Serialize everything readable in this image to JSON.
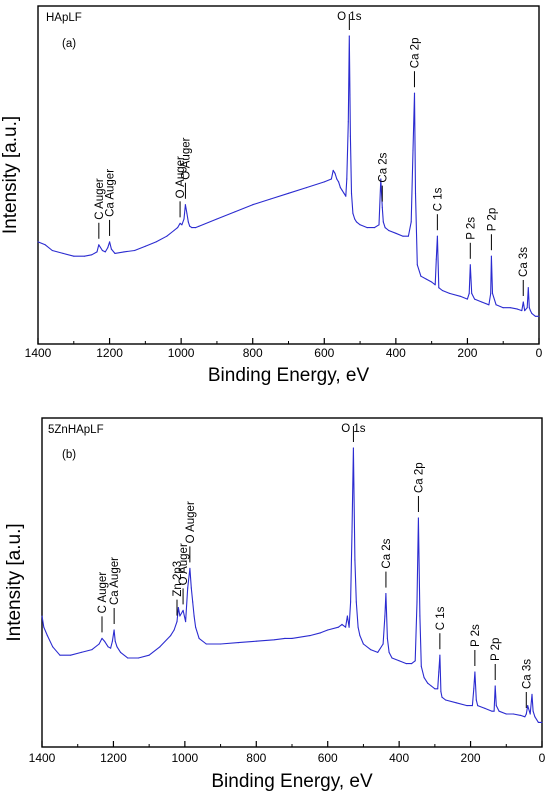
{
  "chart_data": [
    {
      "type": "line",
      "sample": "HApLF",
      "panel": "(a)",
      "xlabel": "Binding Energy, eV",
      "ylabel": "Intensity [a.u.]",
      "xlim": [
        1400,
        0
      ],
      "x_reversed": true,
      "x_ticks": [
        1400,
        1200,
        1000,
        800,
        600,
        400,
        200,
        0
      ],
      "grid": false,
      "line_color": "#2b2bd0",
      "series": [
        {
          "x": [
            1400,
            1380,
            1360,
            1330,
            1300,
            1270,
            1250,
            1235,
            1230,
            1220,
            1212,
            1205,
            1200,
            1195,
            1185,
            1160,
            1130,
            1100,
            1070,
            1040,
            1020,
            1010,
            1003,
            998,
            992,
            988,
            984,
            980,
            976,
            970,
            960,
            950,
            900,
            850,
            800,
            750,
            700,
            650,
            600,
            580,
            575,
            570,
            565,
            560,
            555,
            550,
            545,
            540,
            537,
            533,
            530,
            527,
            524,
            520,
            515,
            510,
            500,
            480,
            460,
            447,
            442,
            438,
            435,
            430,
            420,
            400,
            380,
            365,
            357,
            352,
            348,
            345,
            340,
            330,
            315,
            300,
            290,
            287,
            284,
            280,
            270,
            250,
            220,
            200,
            195,
            192,
            188,
            180,
            160,
            140,
            135,
            133,
            130,
            120,
            100,
            80,
            60,
            48,
            44,
            40,
            33,
            30,
            27,
            24,
            20,
            10,
            5,
            0
          ],
          "y": [
            0.28,
            0.27,
            0.25,
            0.24,
            0.23,
            0.23,
            0.235,
            0.245,
            0.27,
            0.25,
            0.245,
            0.26,
            0.28,
            0.255,
            0.24,
            0.245,
            0.25,
            0.265,
            0.28,
            0.3,
            0.32,
            0.33,
            0.345,
            0.34,
            0.36,
            0.41,
            0.38,
            0.35,
            0.335,
            0.33,
            0.33,
            0.335,
            0.36,
            0.385,
            0.41,
            0.43,
            0.45,
            0.47,
            0.49,
            0.5,
            0.53,
            0.52,
            0.5,
            0.49,
            0.47,
            0.46,
            0.45,
            0.44,
            0.5,
            0.7,
            1.0,
            0.65,
            0.45,
            0.38,
            0.36,
            0.35,
            0.34,
            0.33,
            0.33,
            0.34,
            0.5,
            0.4,
            0.35,
            0.33,
            0.32,
            0.31,
            0.3,
            0.3,
            0.35,
            0.6,
            0.8,
            0.45,
            0.2,
            0.16,
            0.15,
            0.14,
            0.13,
            0.22,
            0.3,
            0.12,
            0.11,
            0.1,
            0.09,
            0.08,
            0.1,
            0.2,
            0.1,
            0.08,
            0.07,
            0.06,
            0.1,
            0.23,
            0.1,
            0.06,
            0.05,
            0.05,
            0.045,
            0.04,
            0.07,
            0.04,
            0.05,
            0.12,
            0.05,
            0.04,
            0.03,
            0.02,
            0.02,
            0.02
          ]
        }
      ],
      "annotations": [
        {
          "label": "C Auger",
          "x": 1230
        },
        {
          "label": "Ca Auger",
          "x": 1200
        },
        {
          "label": "O Auger",
          "x": 1003
        },
        {
          "label": "O Auger",
          "x": 988
        },
        {
          "label": "O 1s",
          "x": 530
        },
        {
          "label": "Ca 2s",
          "x": 438
        },
        {
          "label": "Ca 2p",
          "x": 348
        },
        {
          "label": "C  1s",
          "x": 284
        },
        {
          "label": "P 2s",
          "x": 192
        },
        {
          "label": "P 2p",
          "x": 133
        },
        {
          "label": "Ca 3s",
          "x": 44
        }
      ]
    },
    {
      "type": "line",
      "sample": "5ZnHApLF",
      "panel": "(b)",
      "xlabel": "Binding Energy, eV",
      "ylabel": "Intensity [a.u.]",
      "xlim": [
        1400,
        0
      ],
      "x_reversed": true,
      "x_ticks": [
        1400,
        1200,
        1000,
        800,
        600,
        400,
        200,
        0
      ],
      "grid": false,
      "line_color": "#2b2bd0",
      "series": [
        {
          "x": [
            1400,
            1395,
            1385,
            1370,
            1350,
            1320,
            1290,
            1260,
            1240,
            1232,
            1225,
            1215,
            1208,
            1203,
            1198,
            1195,
            1190,
            1180,
            1160,
            1130,
            1100,
            1070,
            1040,
            1030,
            1022,
            1018,
            1014,
            1005,
            998,
            992,
            986,
            982,
            978,
            974,
            970,
            960,
            940,
            900,
            850,
            800,
            750,
            720,
            700,
            650,
            620,
            600,
            570,
            560,
            550,
            545,
            540,
            536,
            532,
            528,
            524,
            520,
            515,
            510,
            500,
            480,
            460,
            445,
            440,
            437,
            433,
            428,
            420,
            400,
            380,
            365,
            355,
            350,
            346,
            342,
            338,
            330,
            320,
            310,
            300,
            292,
            289,
            286,
            283,
            280,
            270,
            240,
            210,
            195,
            191,
            188,
            184,
            180,
            160,
            140,
            134,
            131,
            128,
            120,
            100,
            80,
            60,
            48,
            44,
            40,
            33,
            28,
            25,
            20,
            10,
            5,
            0
          ],
          "y": [
            0.4,
            0.36,
            0.33,
            0.29,
            0.26,
            0.26,
            0.27,
            0.28,
            0.3,
            0.32,
            0.31,
            0.29,
            0.285,
            0.31,
            0.35,
            0.31,
            0.29,
            0.27,
            0.25,
            0.25,
            0.26,
            0.29,
            0.33,
            0.35,
            0.38,
            0.43,
            0.4,
            0.42,
            0.38,
            0.5,
            0.57,
            0.5,
            0.45,
            0.4,
            0.36,
            0.32,
            0.3,
            0.3,
            0.305,
            0.31,
            0.315,
            0.32,
            0.32,
            0.33,
            0.34,
            0.35,
            0.36,
            0.37,
            0.36,
            0.4,
            0.36,
            0.45,
            0.7,
            1.0,
            0.6,
            0.45,
            0.36,
            0.33,
            0.3,
            0.28,
            0.27,
            0.3,
            0.4,
            0.48,
            0.32,
            0.27,
            0.25,
            0.24,
            0.23,
            0.23,
            0.24,
            0.45,
            0.75,
            0.4,
            0.22,
            0.18,
            0.16,
            0.15,
            0.14,
            0.14,
            0.2,
            0.26,
            0.13,
            0.11,
            0.1,
            0.09,
            0.08,
            0.08,
            0.14,
            0.2,
            0.1,
            0.08,
            0.07,
            0.06,
            0.06,
            0.15,
            0.08,
            0.06,
            0.05,
            0.05,
            0.045,
            0.04,
            0.05,
            0.08,
            0.05,
            0.12,
            0.06,
            0.04,
            0.02,
            0.02,
            0.02
          ]
        }
      ],
      "annotations": [
        {
          "label": "C Auger",
          "x": 1232
        },
        {
          "label": "Ca Auger",
          "x": 1198
        },
        {
          "label": "Zn 2p3",
          "x": 1022
        },
        {
          "label": "O Auger",
          "x": 1005
        },
        {
          "label": "O Auger",
          "x": 986
        },
        {
          "label": "O 1s",
          "x": 528
        },
        {
          "label": "Ca 2s",
          "x": 437
        },
        {
          "label": "Ca 2p",
          "x": 346
        },
        {
          "label": "C  1s",
          "x": 286
        },
        {
          "label": "P 2s",
          "x": 188
        },
        {
          "label": "P 2p",
          "x": 131
        },
        {
          "label": "Ca 3s",
          "x": 44
        }
      ]
    }
  ]
}
